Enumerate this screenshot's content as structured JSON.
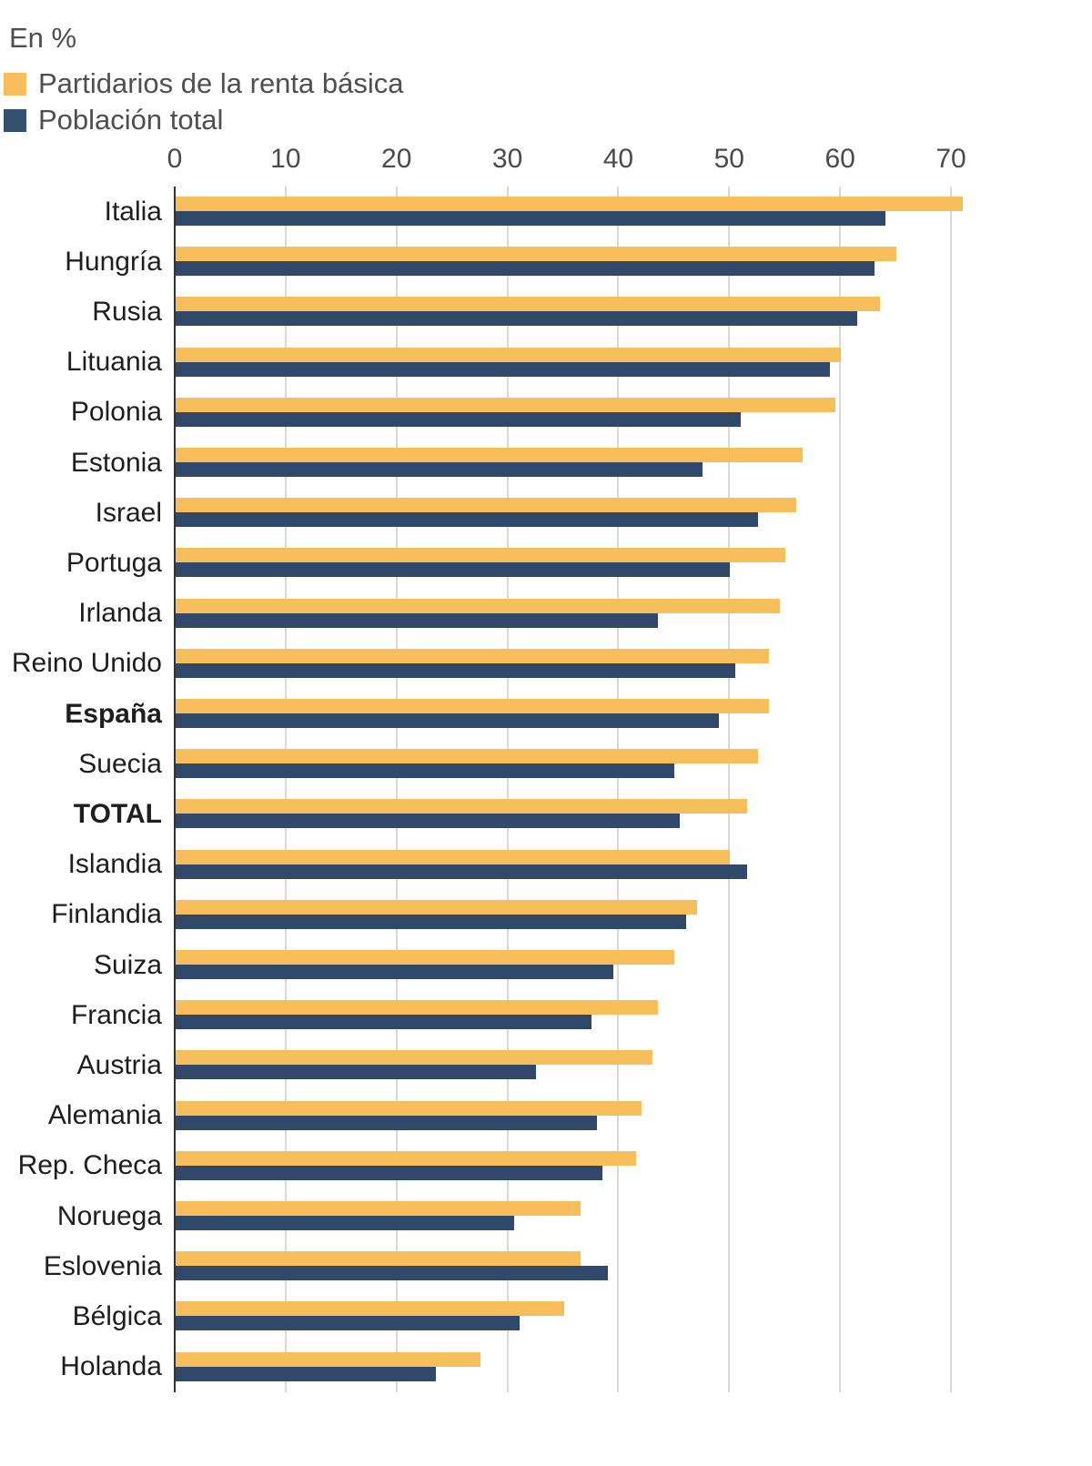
{
  "header": {
    "units_label": "En %"
  },
  "legend": {
    "items": [
      {
        "label": "Partidarios de la renta básica",
        "color": "#F7BE5B"
      },
      {
        "label": "Población total",
        "color": "#33506F"
      }
    ]
  },
  "chart_data": {
    "type": "bar",
    "orientation": "horizontal",
    "value_unit": "%",
    "grid": "vertical",
    "legend_position": "top-left",
    "x_ticks": [
      0,
      10,
      20,
      30,
      40,
      50,
      60,
      70
    ],
    "xlim": [
      0,
      82.7
    ],
    "categories": [
      "Italia",
      "Hungría",
      "Rusia",
      "Lituania",
      "Polonia",
      "Estonia",
      "Israel",
      "Portuga",
      "Irlanda",
      "Reino Unido",
      "España",
      "Suecia",
      "TOTAL",
      "Islandia",
      "Finlandia",
      "Suiza",
      "Francia",
      "Austria",
      "Alemania",
      "Rep. Checa",
      "Noruega",
      "Eslovenia",
      "Bélgica",
      "Holanda"
    ],
    "bold_categories": [
      "España",
      "TOTAL"
    ],
    "series": [
      {
        "name": "Partidarios de la renta básica",
        "color": "#F7BE5B",
        "values": [
          71,
          65,
          63.5,
          60,
          59.5,
          56.5,
          56,
          55,
          54.5,
          53.5,
          53.5,
          52.5,
          51.5,
          50,
          47,
          45,
          43.5,
          43,
          42,
          41.5,
          36.5,
          36.5,
          35,
          27.5
        ]
      },
      {
        "name": "Población total",
        "color": "#30496B",
        "values": [
          64,
          63,
          61.5,
          59,
          51,
          47.5,
          52.5,
          50,
          43.5,
          50.5,
          49,
          45,
          45.5,
          51.5,
          46,
          39.5,
          37.5,
          32.5,
          38,
          38.5,
          30.5,
          39,
          31,
          23.5
        ]
      }
    ]
  }
}
